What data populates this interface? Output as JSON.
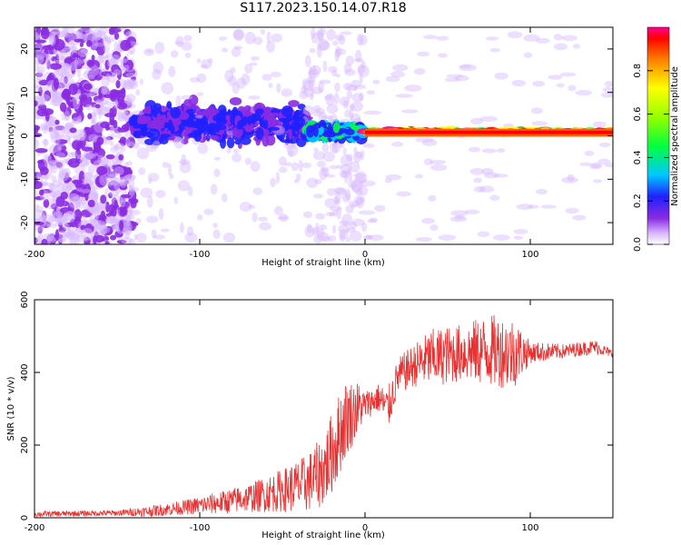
{
  "title": "S117.2023.150.14.07.R18",
  "colors": {
    "line": "#e83232",
    "frame": "#000000",
    "background": "#ffffff"
  },
  "chart_data": [
    {
      "type": "heatmap",
      "title": "S117.2023.150.14.07.R18",
      "xlabel": "Height of straight line (km)",
      "ylabel": "Frequency (Hz)",
      "xlim": [
        -200,
        150
      ],
      "ylim": [
        -25,
        25
      ],
      "xticks": [
        -200,
        -100,
        0,
        100
      ],
      "yticks": [
        -20,
        -10,
        0,
        10,
        20
      ],
      "colorbar": {
        "label": "Normalized spectral amplitude",
        "range": [
          0,
          1
        ],
        "ticks": [
          0.0,
          0.2,
          0.4,
          0.6,
          0.8
        ],
        "colormap": "rainbow (white-violet-blue-cyan-green-yellow-red)"
      },
      "features": [
        {
          "x_range": [
            -200,
            -140
          ],
          "freq_spread": 25,
          "amplitude": 0.05,
          "description": "scattered noise across all frequencies"
        },
        {
          "x_range": [
            -140,
            -35
          ],
          "freq_center": 3,
          "freq_spread": 6,
          "amplitude": 0.15
        },
        {
          "x_range": [
            -35,
            0
          ],
          "freq_center": 1,
          "freq_spread": 2,
          "amplitude": 0.3
        },
        {
          "x_range": [
            0,
            150
          ],
          "freq_center": 1,
          "freq_spread": 0.6,
          "amplitude": 0.95,
          "description": "narrow strong band"
        }
      ]
    },
    {
      "type": "line",
      "xlabel": "Height of straight line (km)",
      "ylabel": "SNR (10 * v/v)",
      "xlim": [
        -200,
        150
      ],
      "ylim": [
        0,
        600
      ],
      "xticks": [
        -200,
        -100,
        0,
        100
      ],
      "yticks": [
        0,
        200,
        400,
        600
      ],
      "series": [
        {
          "color": "#e83232",
          "envelope": {
            "x": [
              -200,
              -170,
              -150,
              -130,
              -110,
              -90,
              -70,
              -50,
              -35,
              -25,
              -18,
              -12,
              -5,
              0,
              8,
              14,
              20,
              30,
              40,
              60,
              75,
              90,
              100,
              120,
              135,
              140,
              150
            ],
            "mean": [
              10,
              12,
              13,
              18,
              28,
              40,
              55,
              75,
              95,
              130,
              200,
              270,
              300,
              310,
              330,
              300,
              390,
              420,
              440,
              455,
              460,
              455,
              455,
              458,
              468,
              470,
              450
            ],
            "spread": [
              8,
              8,
              8,
              15,
              20,
              30,
              40,
              60,
              80,
              100,
              120,
              110,
              80,
              40,
              40,
              60,
              50,
              60,
              80,
              80,
              100,
              100,
              30,
              20,
              20,
              20,
              10
            ]
          }
        }
      ]
    }
  ]
}
